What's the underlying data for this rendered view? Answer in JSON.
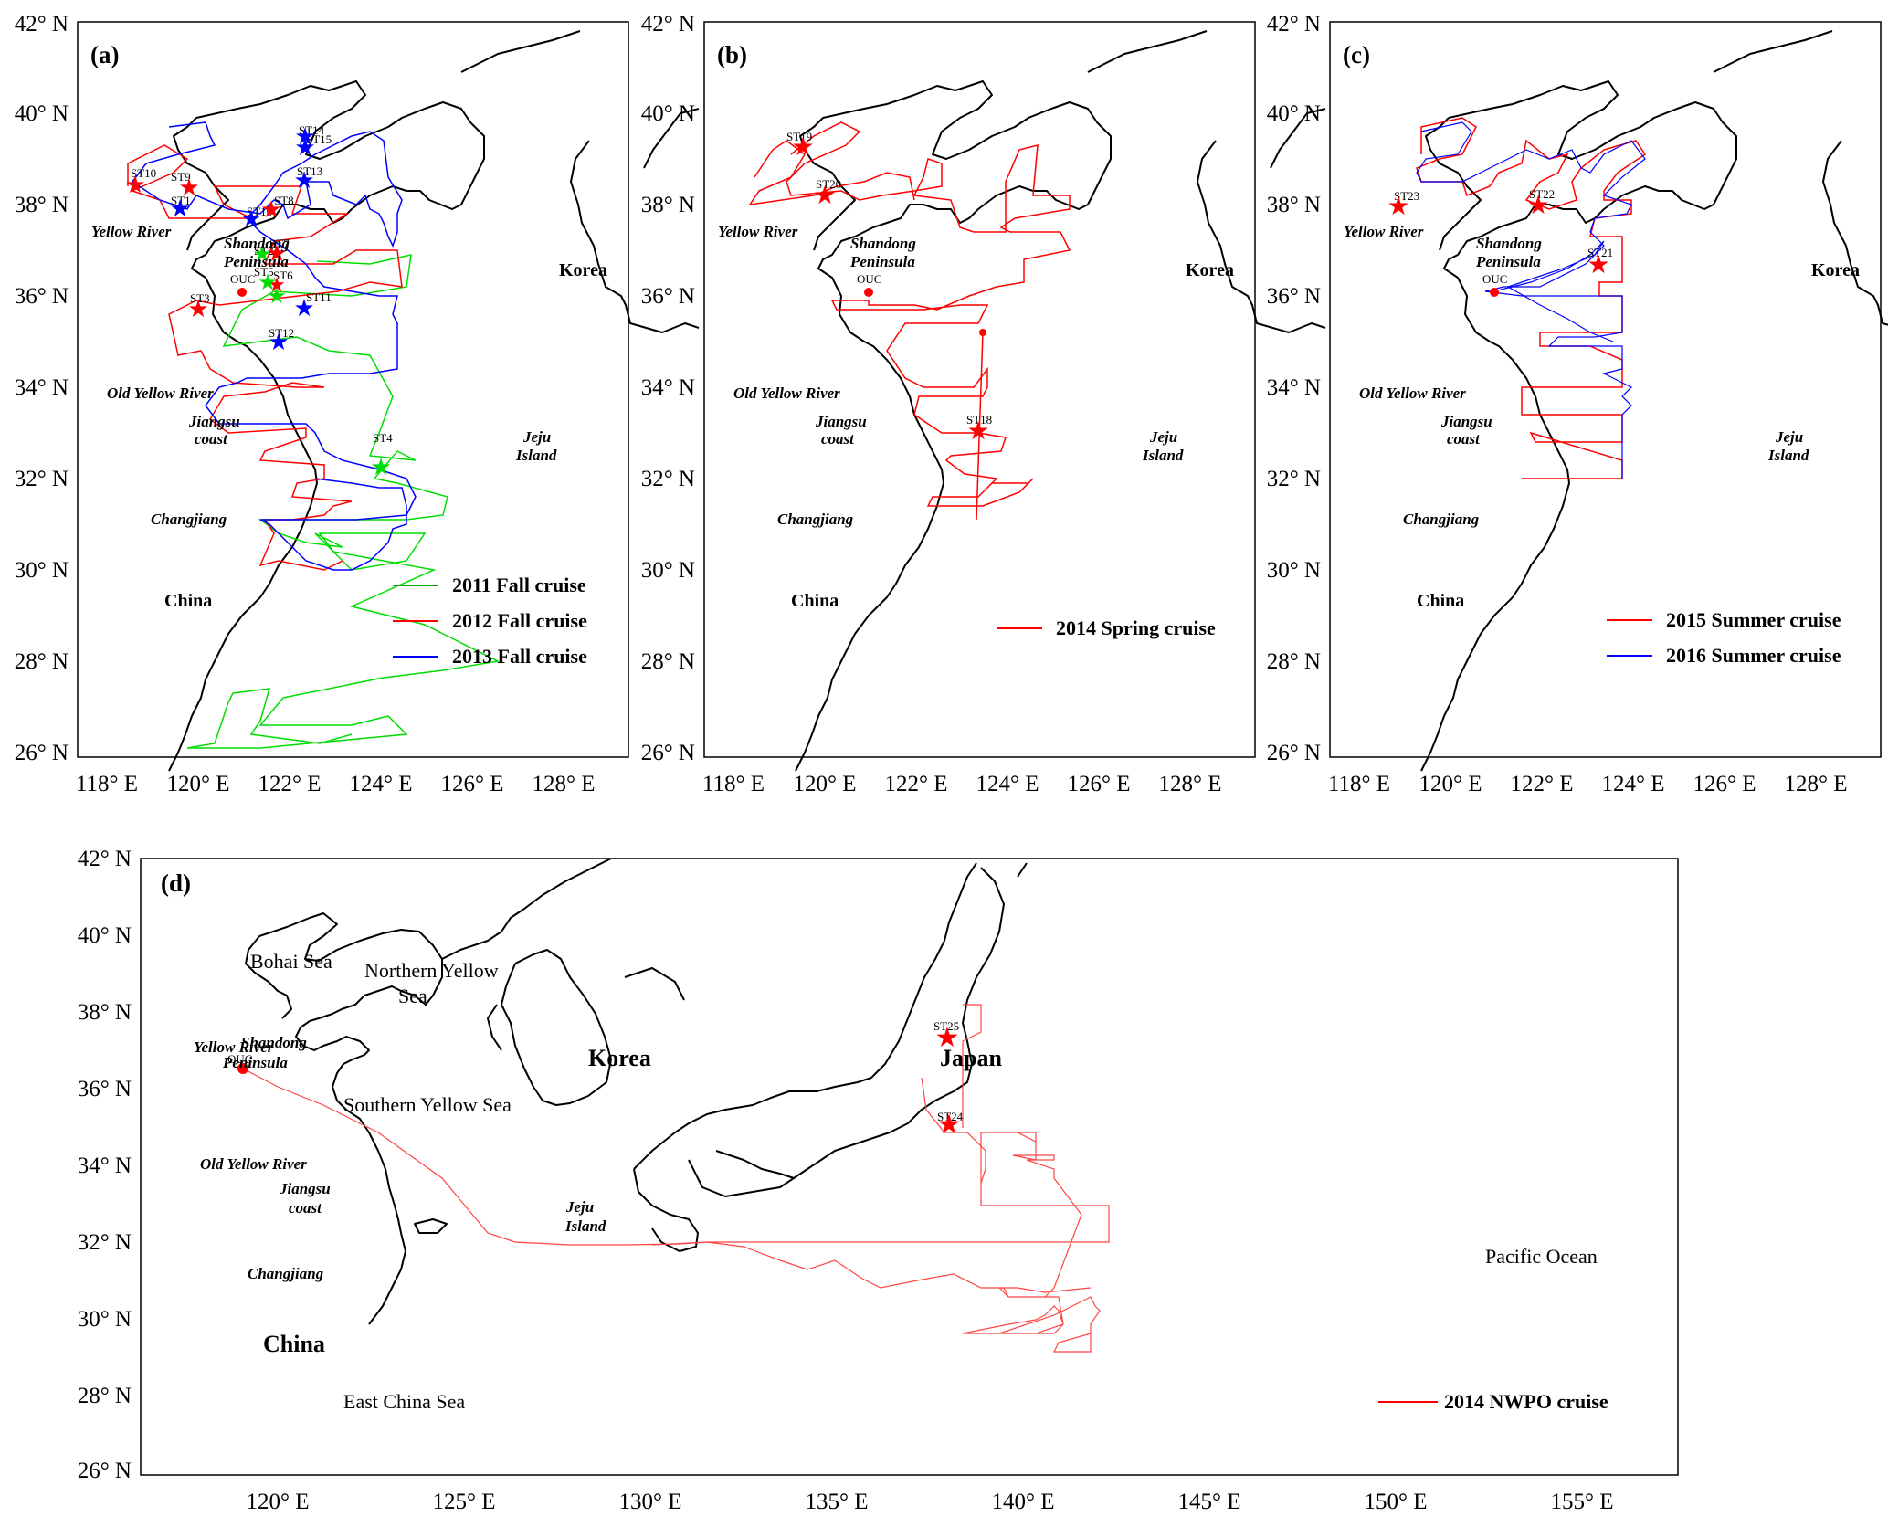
{
  "panels": [
    {
      "tag": "(a)",
      "lon_ticks": [
        "118° E",
        "120° E",
        "122° E",
        "124° E",
        "126° E",
        "128° E"
      ],
      "lat_ticks": [
        "26° N",
        "28° N",
        "30° N",
        "32° N",
        "34° N",
        "36° N",
        "38° N",
        "40° N",
        "42° N"
      ],
      "places": {
        "yellow_river": "Yellow River",
        "shandong": "Shandong",
        "peninsula": "Peninsula",
        "korea": "Korea",
        "old_yellow_river": "Old Yellow River",
        "jiangsu": "Jiangsu",
        "coast": "coast",
        "jeju": "Jeju",
        "island": "Island",
        "changjiang": "Changjiang",
        "china": "China",
        "ouc": "OUC"
      },
      "stations": {
        "st10": "ST10",
        "st9": "ST9",
        "st1": "ST1",
        "st16": "ST16",
        "st8": "ST8",
        "st13": "ST13",
        "st14": "ST14",
        "st15": "ST15",
        "st7": "ST7",
        "st5": "ST5",
        "st6": "ST6",
        "st3": "ST3",
        "st11": "ST11",
        "st12": "ST12",
        "st4": "ST4",
        "st2": "ST2"
      },
      "legend": [
        {
          "label": "2011 Fall  cruise",
          "color": "#00aa00"
        },
        {
          "label": "2012 Fall  cruise",
          "color": "#ff0000"
        },
        {
          "label": "2013 Fall  cruise",
          "color": "#0000ff"
        }
      ]
    },
    {
      "tag": "(b)",
      "lon_ticks": [
        "118° E",
        "120° E",
        "122° E",
        "124° E",
        "126° E",
        "128° E"
      ],
      "lat_ticks": [
        "26° N",
        "28° N",
        "30° N",
        "32° N",
        "34° N",
        "36° N",
        "38° N",
        "40° N",
        "42° N"
      ],
      "places": {
        "yellow_river": "Yellow River",
        "shandong": "Shandong",
        "peninsula": "Peninsula",
        "korea": "Korea",
        "old_yellow_river": "Old Yellow River",
        "jiangsu": "Jiangsu",
        "coast": "coast",
        "jeju": "Jeju",
        "island": "Island",
        "changjiang": "Changjiang",
        "china": "China",
        "ouc": "OUC"
      },
      "stations": {
        "st19": "ST19",
        "st20": "ST20",
        "st18": "ST18"
      },
      "legend": [
        {
          "label": "2014 Spring  cruise",
          "color": "#ff0000"
        }
      ]
    },
    {
      "tag": "(c)",
      "lon_ticks": [
        "118° E",
        "120° E",
        "122° E",
        "124° E",
        "126° E",
        "128° E"
      ],
      "lat_ticks": [
        "26° N",
        "28° N",
        "30° N",
        "32° N",
        "34° N",
        "36° N",
        "38° N",
        "40° N",
        "42° N"
      ],
      "places": {
        "yellow_river": "Yellow River",
        "shandong": "Shandong",
        "peninsula": "Peninsula",
        "korea": "Korea",
        "old_yellow_river": "Old Yellow River",
        "jiangsu": "Jiangsu",
        "coast": "coast",
        "jeju": "Jeju",
        "island": "Island",
        "changjiang": "Changjiang",
        "china": "China",
        "ouc": "OUC"
      },
      "stations": {
        "st23": "ST23",
        "st22": "ST22",
        "st21": "ST21"
      },
      "legend": [
        {
          "label": "2015 Summer  cruise",
          "color": "#ff0000"
        },
        {
          "label": "2016 Summer  cruise",
          "color": "#0000ff"
        }
      ]
    },
    {
      "tag": "(d)",
      "lon_ticks": [
        "120° E",
        "125° E",
        "130° E",
        "135° E",
        "140° E",
        "145° E",
        "150° E",
        "155° E"
      ],
      "lat_ticks": [
        "26° N",
        "28° N",
        "30° N",
        "32° N",
        "34° N",
        "36° N",
        "38° N",
        "40° N",
        "42° N"
      ],
      "places": {
        "bohai": "Bohai Sea",
        "northern_yellow_1": "Northern Yellow",
        "northern_yellow_2": "Sea",
        "yellow_river": "Yellow River",
        "shandong": "Shandong",
        "peninsula": "Peninsula",
        "korea": "Korea",
        "japan": "Japan",
        "southern_yellow": "Southern Yellow Sea",
        "old_yellow_river": "Old Yellow River",
        "jiangsu": "Jiangsu",
        "coast": "coast",
        "jeju": "Jeju",
        "island": "Island",
        "changjiang": "Changjiang",
        "china": "China",
        "east_china_sea": "East China Sea",
        "pacific": "Pacific Ocean",
        "ouc": "OUC"
      },
      "stations": {
        "st25": "ST25",
        "st24": "ST24"
      },
      "legend": [
        {
          "label": "2014 NWPO  cruise",
          "color": "#ff0000"
        }
      ]
    }
  ],
  "colors": {
    "red": "#ff0000",
    "blue": "#0000ff",
    "green": "#00cc00",
    "coast": "#000000"
  }
}
